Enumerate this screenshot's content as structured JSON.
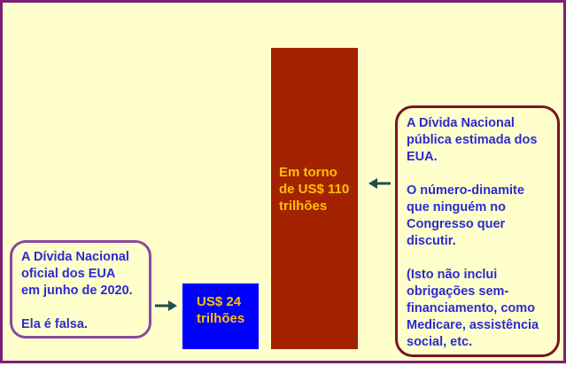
{
  "chart_data": {
    "type": "bar",
    "title": "",
    "xlabel": "",
    "ylabel": "",
    "ylim": [
      0,
      110
    ],
    "grid": false,
    "categories": [
      "",
      ""
    ],
    "values": [
      24,
      110
    ],
    "bars": [
      {
        "value": 24,
        "color": "#0000ff",
        "label_lines": [
          "US$ 24",
          "trilhões"
        ]
      },
      {
        "value": 110,
        "color": "#a32200",
        "label_lines": [
          "Em torno",
          "de US$ 110",
          "trilhões"
        ]
      }
    ],
    "annotations": [
      {
        "points_to": "bar-1",
        "border_color": "#8a4aa0",
        "paragraphs": [
          [
            "A Dívida Nacional",
            "oficial dos EUA",
            "em junho de 2020."
          ],
          [
            "Ela é falsa."
          ]
        ]
      },
      {
        "points_to": "bar-2",
        "border_color": "#7a1422",
        "paragraphs": [
          [
            "A Dívida Nacional",
            "pública estimada dos",
            "EUA."
          ],
          [
            "O número-dinamite",
            "que ninguém no",
            "Congresso quer",
            "discutir."
          ],
          [
            "(Isto não inclui",
            "obrigações sem-",
            "financiamento, como",
            "Medicare, assistência",
            "social, etc."
          ]
        ]
      }
    ]
  },
  "colors": {
    "background": "#ffffcc",
    "frame_border": "#7a1f7a",
    "callout_text": "#2b2bd0",
    "bar_label_text": "#ffc000",
    "arrow": "#1f4f4f"
  }
}
